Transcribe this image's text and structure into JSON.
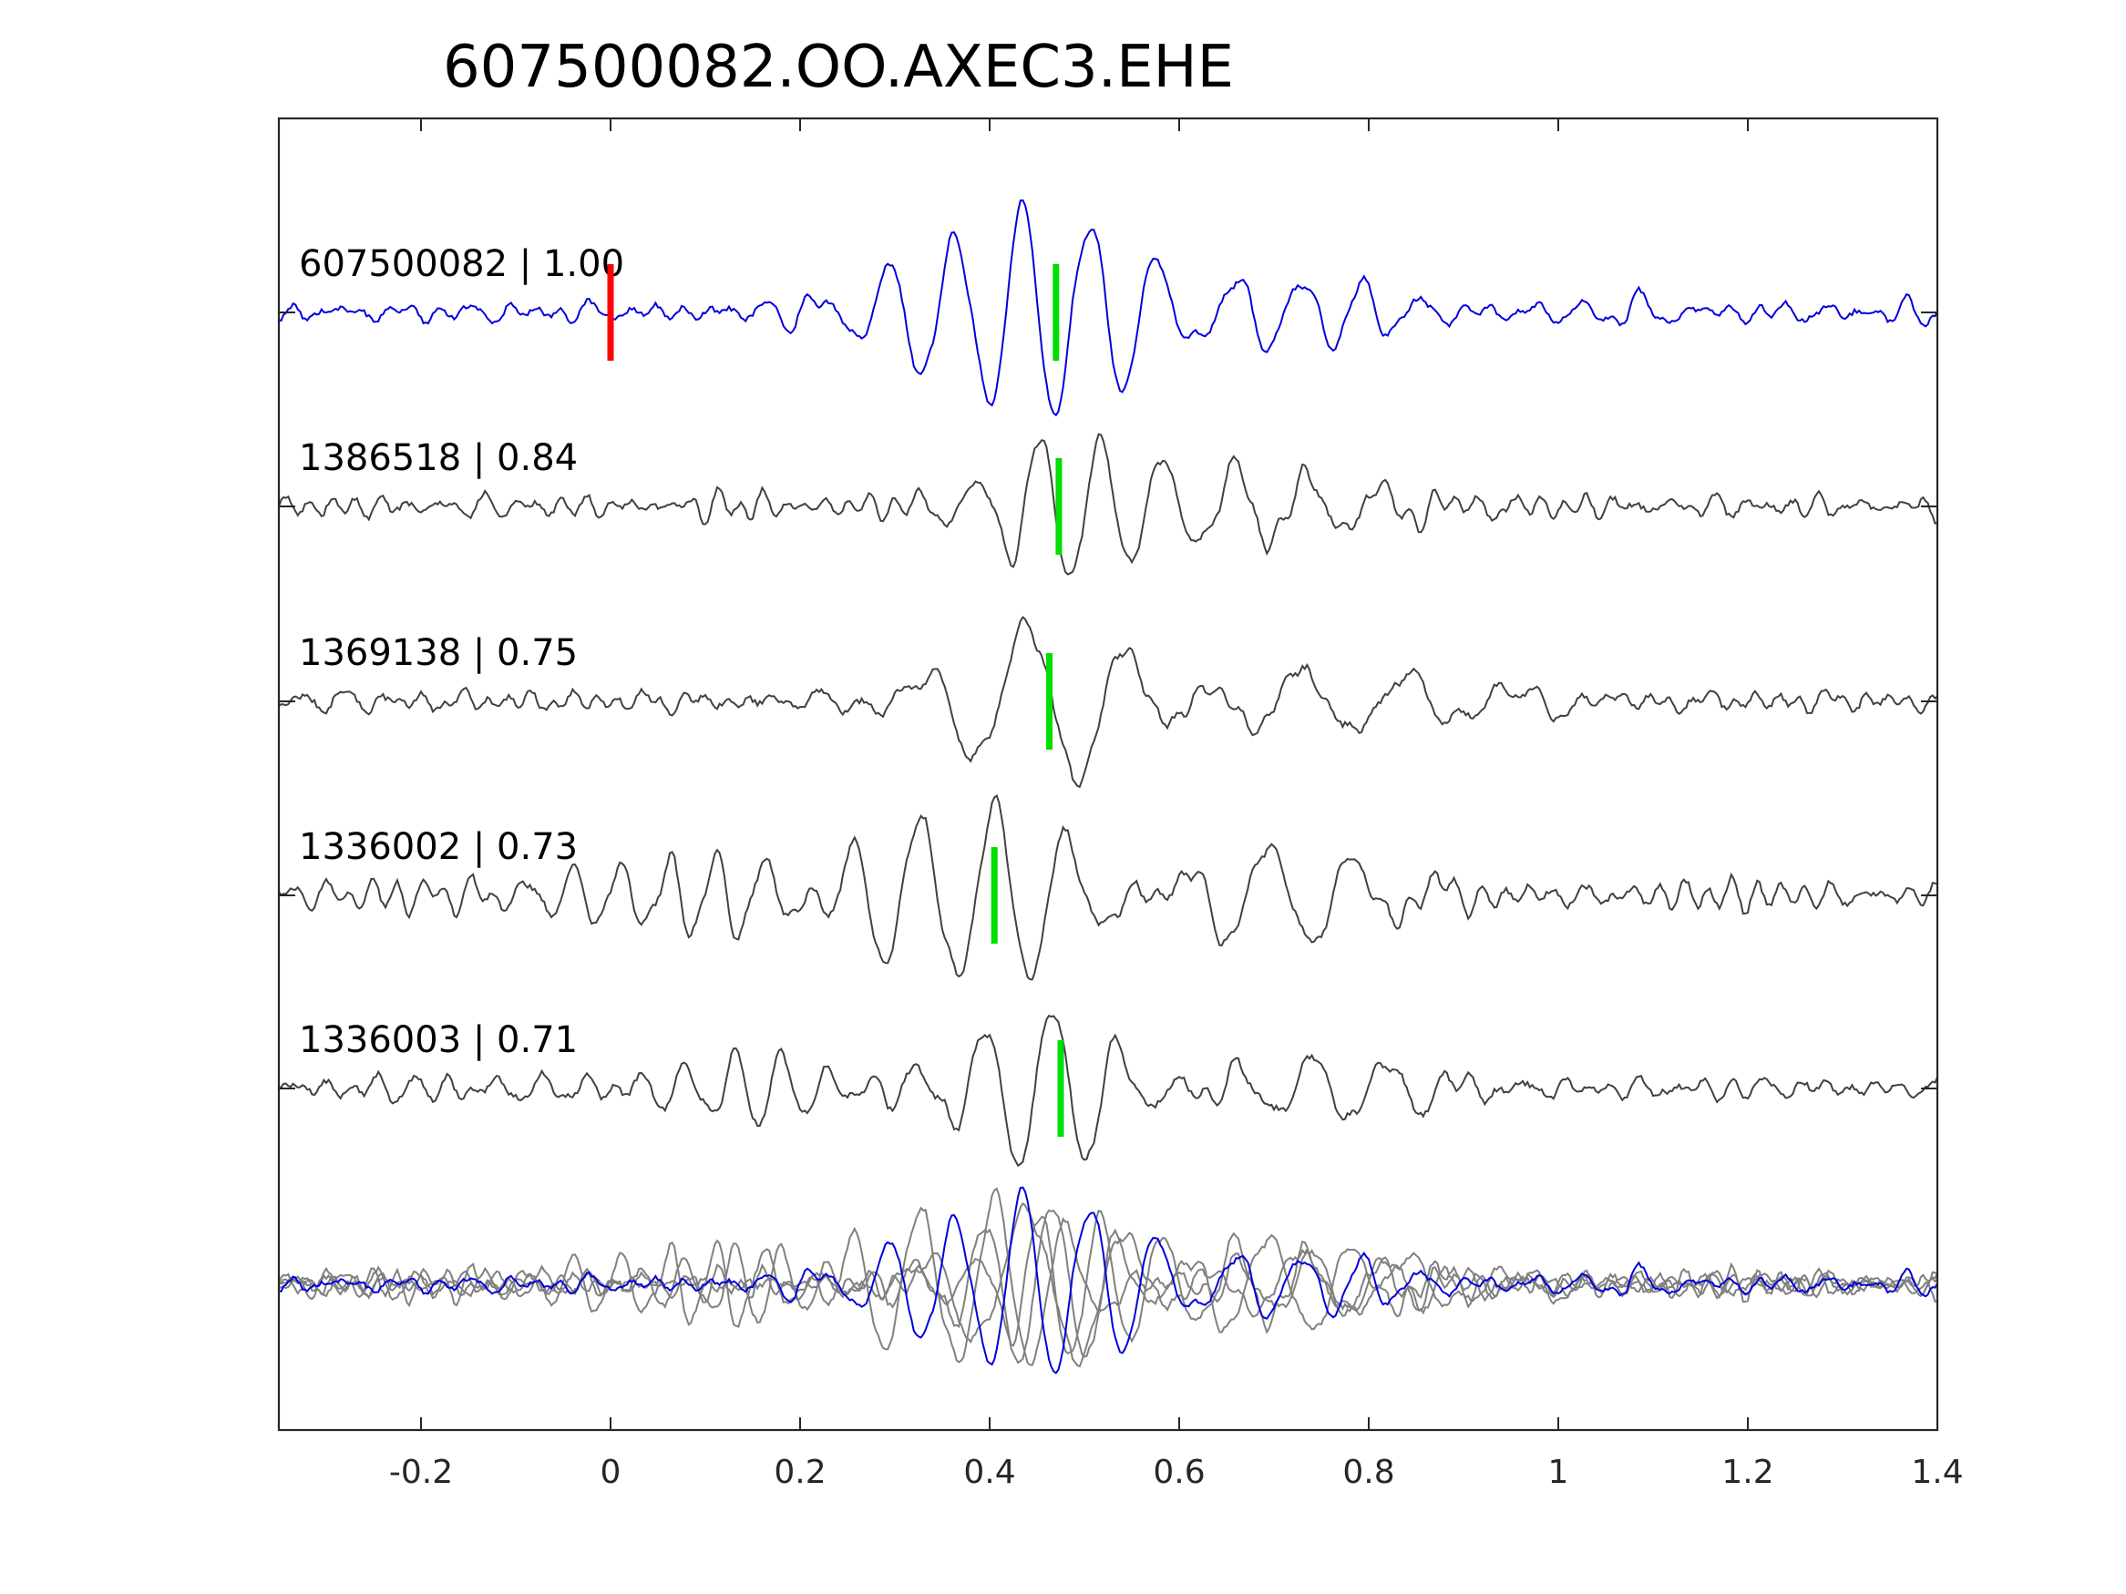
{
  "chart_data": {
    "type": "line",
    "title": "607500082.OO.AXEC3.EHE",
    "xlabel": "",
    "ylabel": "",
    "xlim": [
      -0.35,
      1.4
    ],
    "xticks": [
      -0.2,
      0,
      0.2,
      0.4,
      0.6,
      0.8,
      1,
      1.2,
      1.4
    ],
    "xtick_labels": [
      "-0.2",
      "0",
      "0.2",
      "0.4",
      "0.6",
      "0.8",
      "1",
      "1.2",
      "1.4"
    ],
    "grid": false,
    "legend": "none",
    "reference_pick_color": "#ff0000",
    "pick_color": "#00dd00",
    "template_color": "#0000dd",
    "trace_color": "#404040",
    "overlay_color": "#808080",
    "traces": [
      {
        "label": "607500082 | 1.00",
        "color": "#0000dd",
        "amplitude": 1.0,
        "pick": 0.47,
        "reference_pick": 0.0,
        "arrivals": [
          {
            "t": 0.455,
            "dur": 0.35,
            "f": 14,
            "amp": 1.0,
            "phase": 3.4
          },
          {
            "t": 0.72,
            "dur": 0.3,
            "f": 16,
            "amp": 0.35,
            "phase": 0.4
          },
          {
            "t": 1.08,
            "dur": 0.08,
            "f": 18,
            "amp": 0.18,
            "phase": 1.2
          }
        ],
        "noise": 0.09
      },
      {
        "label": "1386518 | 0.84",
        "color": "#404040",
        "amplitude": 0.85,
        "pick": 0.473,
        "arrivals": [
          {
            "t": 0.465,
            "dur": 0.18,
            "f": 15,
            "amp": 0.9,
            "phase": 2.6
          },
          {
            "t": 0.65,
            "dur": 0.38,
            "f": 13,
            "amp": 0.45,
            "phase": 0.9
          }
        ],
        "noise": 0.12
      },
      {
        "label": "1369138 | 0.75",
        "color": "#404040",
        "amplitude": 0.9,
        "pick": 0.463,
        "arrivals": [
          {
            "t": 0.47,
            "dur": 0.26,
            "f": 9,
            "amp": 1.0,
            "phase": 3.3
          },
          {
            "t": 0.72,
            "dur": 0.5,
            "f": 9,
            "amp": 0.35,
            "phase": 1.1
          }
        ],
        "noise": 0.11
      },
      {
        "label": "1336002 | 0.73",
        "color": "#404040",
        "amplitude": 0.9,
        "pick": 0.405,
        "arrivals": [
          {
            "t": 0.39,
            "dur": 0.3,
            "f": 13,
            "amp": 1.0,
            "phase": 0.4
          },
          {
            "t": 0.7,
            "dur": 0.3,
            "f": 11,
            "amp": 0.55,
            "phase": 2.0
          },
          {
            "t": 0.1,
            "dur": 0.35,
            "f": 20,
            "amp": 0.35,
            "phase": 0.2
          }
        ],
        "noise": 0.12
      },
      {
        "label": "1336003 | 0.71",
        "color": "#404040",
        "amplitude": 0.85,
        "pick": 0.475,
        "arrivals": [
          {
            "t": 0.46,
            "dur": 0.2,
            "f": 14,
            "amp": 1.0,
            "phase": 1.0
          },
          {
            "t": 0.75,
            "dur": 0.25,
            "f": 13,
            "amp": 0.4,
            "phase": 2.4
          },
          {
            "t": 0.13,
            "dur": 0.3,
            "f": 20,
            "amp": 0.35,
            "phase": 1.6
          }
        ],
        "noise": 0.12
      }
    ]
  }
}
